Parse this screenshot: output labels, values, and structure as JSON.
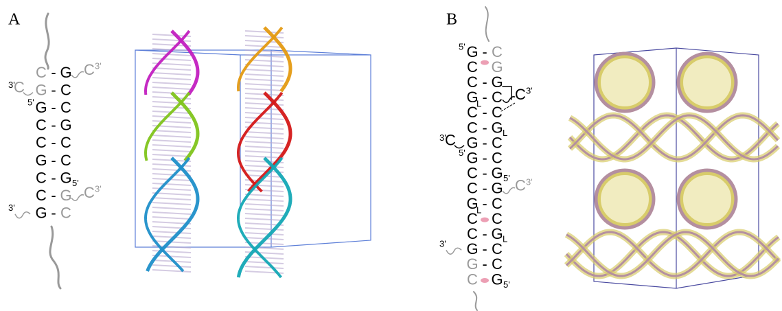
{
  "panels": [
    {
      "label": "A",
      "rows": [
        {
          "left": "C",
          "sep": "-",
          "right": "G",
          "left_color": "#999",
          "right_color": "#000",
          "tail_base": "C",
          "tail_prime": "3'",
          "tail_color": "#999"
        },
        {
          "lead_prime": "3'",
          "lead_base": "C",
          "lead_color": "#999",
          "left": "G",
          "sep": "-",
          "right": "C",
          "left_color": "#999",
          "right_color": "#000"
        },
        {
          "lead_prime": "5'",
          "lead_color": "#000",
          "left": "G",
          "sep": "-",
          "right": "C",
          "left_color": "#000",
          "right_color": "#000"
        },
        {
          "left": "C",
          "sep": "-",
          "right": "G",
          "left_color": "#000",
          "right_color": "#000"
        },
        {
          "left": "C",
          "sep": "-",
          "right": "C",
          "left_color": "#000",
          "right_color": "#000"
        },
        {
          "left": "G",
          "sep": "-",
          "right": "C",
          "left_color": "#000",
          "right_color": "#000"
        },
        {
          "left": "C",
          "sep": "-",
          "right": "G",
          "right_sub": "5'",
          "left_color": "#000",
          "right_color": "#000"
        },
        {
          "left": "C",
          "sep": "-",
          "right": "G",
          "left_color": "#000",
          "right_color": "#999",
          "tail_base": "C",
          "tail_prime": "3'",
          "tail_color": "#999"
        },
        {
          "lead_prime": "3'",
          "lead_color": "#000",
          "left": "G",
          "sep": "-",
          "right": "C",
          "left_color": "#000",
          "right_color": "#999"
        }
      ]
    },
    {
      "label": "B",
      "dot_color": "#ec9fb4",
      "rows": [
        {
          "lead_prime": "5'",
          "lead_color": "#000",
          "left": "G",
          "sep": "-",
          "right": "C",
          "left_color": "#000",
          "right_color": "#999"
        },
        {
          "left": "C",
          "right": "G",
          "left_color": "#000",
          "right_color": "#999"
        },
        {
          "left": "C",
          "sep": "-",
          "right": "G",
          "left_color": "#000",
          "right_color": "#000"
        },
        {
          "left": "G",
          "left_sup": "L",
          "sep": "-",
          "right": "C",
          "left_color": "#000",
          "right_color": "#000",
          "tail_base": "C",
          "tail_prime": "3'",
          "tail_color": "#000"
        },
        {
          "left": "C",
          "sep": "-",
          "right": "C",
          "left_color": "#000",
          "right_color": "#000"
        },
        {
          "left": "C",
          "sep": "-",
          "right": "G",
          "right_sup": "L",
          "left_color": "#000",
          "right_color": "#000"
        },
        {
          "lead_prime": "3'",
          "lead_base": "C",
          "lead_color": "#000",
          "left": "G",
          "sep": "-",
          "right": "C",
          "left_color": "#000",
          "right_color": "#000"
        },
        {
          "lead_prime": "5'",
          "lead_color": "#000",
          "left": "G",
          "sep": "-",
          "right": "C",
          "left_color": "#000",
          "right_color": "#000"
        },
        {
          "left": "C",
          "sep": "-",
          "right": "G",
          "right_sub": "5'",
          "left_color": "#000",
          "right_color": "#000"
        },
        {
          "left": "C",
          "sep": "-",
          "right": "G",
          "left_color": "#000",
          "right_color": "#000",
          "tail_base": "C",
          "tail_prime": "3'",
          "tail_color": "#999"
        },
        {
          "left": "G",
          "left_sup": "L",
          "sep": "-",
          "right": "C",
          "left_color": "#000",
          "right_color": "#000"
        },
        {
          "left": "C",
          "right": "C",
          "left_color": "#000",
          "right_color": "#000"
        },
        {
          "left": "C",
          "sep": "-",
          "right": "G",
          "right_sup": "L",
          "left_color": "#000",
          "right_color": "#000"
        },
        {
          "lead_prime": "3'",
          "lead_color": "#000",
          "left": "G",
          "sep": "-",
          "right": "C",
          "left_color": "#000",
          "right_color": "#000"
        },
        {
          "left": "G",
          "sep": "-",
          "right": "C",
          "left_color": "#999",
          "right_color": "#000"
        },
        {
          "left": "C",
          "right": "G",
          "right_sub": "5'",
          "left_color": "#999",
          "right_color": "#000"
        }
      ]
    }
  ]
}
